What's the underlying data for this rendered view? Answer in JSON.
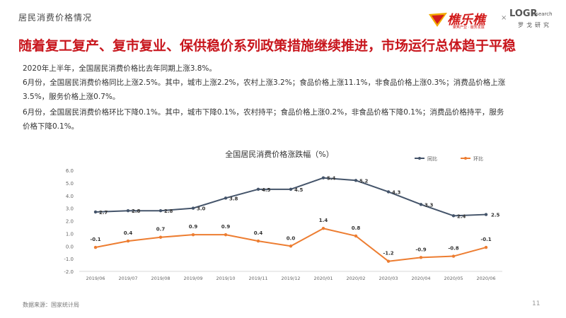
{
  "header": {
    "section_title": "居民消费价格情况",
    "logo_main_text": "樵乐樵",
    "logo_main_sub": "聚焦产业 · 服务发展",
    "logo_separator": "×",
    "logo_lgr_text": "LOGR",
    "logo_lgr_small": "esearch",
    "logo_lgr_cn": "罗戈研究"
  },
  "headline": "随着复工复产、复市复业、保供稳价系列政策措施继续推进，市场运行总体趋于平稳",
  "paragraphs": [
    "2020年上半年，全国居民消费价格比去年同期上涨3.8%。",
    "6月份，全国居民消费价格同比上涨2.5%。其中，城市上涨2.2%，农村上涨3.2%；食品价格上涨11.1%，非食品价格上涨0.3%；消费品价格上涨",
    "3.5%，服务价格上涨0.7%。",
    "6月份，全国居民消费价格环比下降0.1%。其中，城市下降0.1%，农村持平；食品价格上涨0.2%，非食品价格下降0.1%；消费品价格持平，服务",
    "价格下降0.1%。"
  ],
  "chart_data": {
    "type": "line",
    "title": "全国居民消费价格涨跌幅（%）",
    "categories": [
      "2019/06",
      "2019/07",
      "2019/08",
      "2019/09",
      "2019/10",
      "2019/11",
      "2019/12",
      "2020/01",
      "2020/02",
      "2020/03",
      "2020/04",
      "2020/05",
      "2020/06"
    ],
    "series": [
      {
        "name": "同比",
        "color": "#44546a",
        "values": [
          2.7,
          2.8,
          2.8,
          3.0,
          3.8,
          4.5,
          4.5,
          5.4,
          5.2,
          4.3,
          3.3,
          2.4,
          2.5
        ]
      },
      {
        "name": "环比",
        "color": "#ed7d31",
        "values": [
          -0.1,
          0.4,
          0.7,
          0.9,
          0.9,
          0.4,
          0.0,
          1.4,
          0.8,
          -1.2,
          -0.9,
          -0.8,
          -0.1
        ]
      }
    ],
    "y_ticks": [
      "6.0",
      "5.0",
      "4.0",
      "3.0",
      "2.0",
      "1.0",
      "0.0",
      "-1.0",
      "-2.0"
    ],
    "ylim": [
      -2.0,
      6.0
    ],
    "grid": false,
    "legend_position": "top-right"
  },
  "footer": {
    "source": "数据来源：国家统计局",
    "page_number": "11"
  }
}
